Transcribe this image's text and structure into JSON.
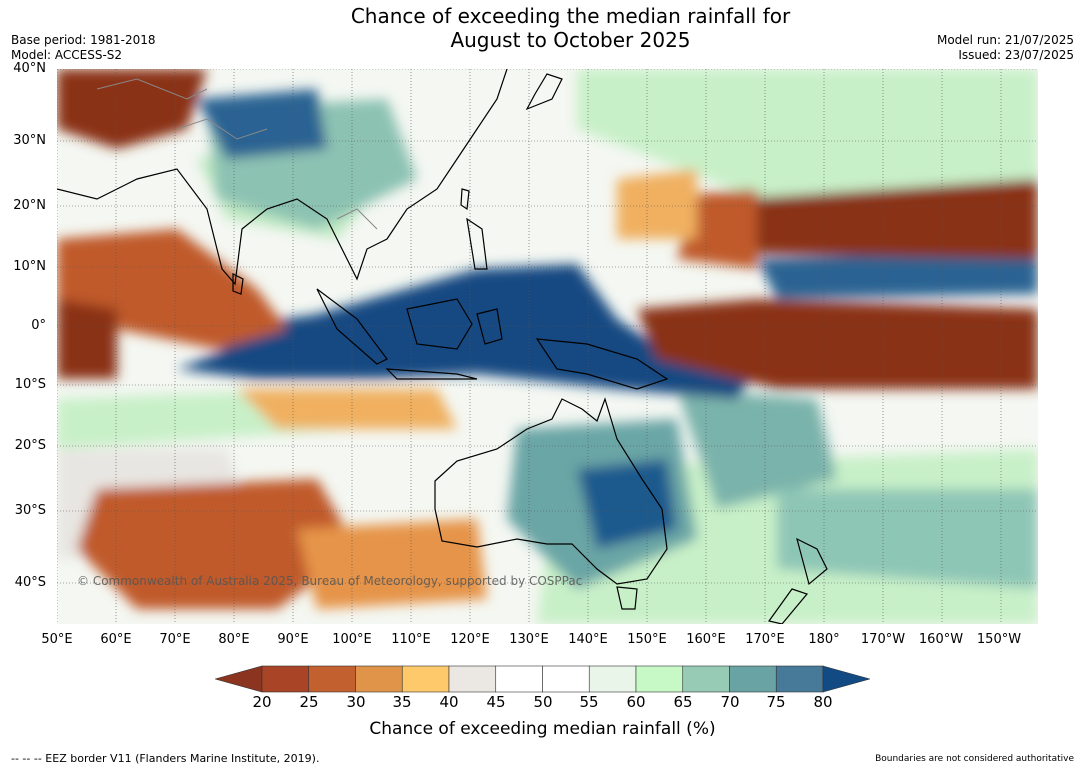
{
  "title": {
    "line1": "Chance of exceeding the median rainfall for",
    "line2": "August to October 2025"
  },
  "meta": {
    "base_period": "Base period: 1981-2018",
    "model": "Model: ACCESS-S2",
    "model_run": "Model run: 21/07/2025",
    "issued": "Issued: 23/07/2025"
  },
  "map": {
    "lat_labels": [
      "40°N",
      "30°N",
      "20°N",
      "10°N",
      "0°",
      "10°S",
      "20°S",
      "30°S",
      "40°S"
    ],
    "lon_labels": [
      "50°E",
      "60°E",
      "70°E",
      "80°E",
      "90°E",
      "100°E",
      "110°E",
      "120°E",
      "130°E",
      "140°E",
      "150°E",
      "160°E",
      "170°E",
      "180°",
      "170°W",
      "160°W",
      "150°W"
    ],
    "watermark": "© Commonwealth of Australia 2025, Bureau of Meteorology, supported by COSPPac",
    "colors": {
      "dry_strong": "#8a3118",
      "dry": "#c05a2a",
      "mild_dry": "#f0b060",
      "neutral": "#ffffff",
      "grey": "#e8e6e2",
      "mild_wet": "#c8f7c8",
      "wet": "#6aa6a6",
      "wet_strong": "#124a82",
      "land_line": "#000000"
    }
  },
  "colorbar": {
    "ticks": [
      "20",
      "25",
      "30",
      "35",
      "40",
      "45",
      "50",
      "55",
      "60",
      "65",
      "70",
      "75",
      "80"
    ],
    "colors": [
      "#8b3520",
      "#a94426",
      "#c3602f",
      "#e0944a",
      "#fec96b",
      "#ebe8e3",
      "#ffffff",
      "#ffffff",
      "#eaf5ea",
      "#c6f9c6",
      "#97cbb5",
      "#6aa3a4",
      "#477998",
      "#124b84"
    ],
    "label": "Chance of exceeding median rainfall (%)"
  },
  "footer": {
    "left": "--  --  -- EEZ border V11 (Flanders Marine Institute, 2019).",
    "right": "Boundaries are not considered authoritative"
  }
}
